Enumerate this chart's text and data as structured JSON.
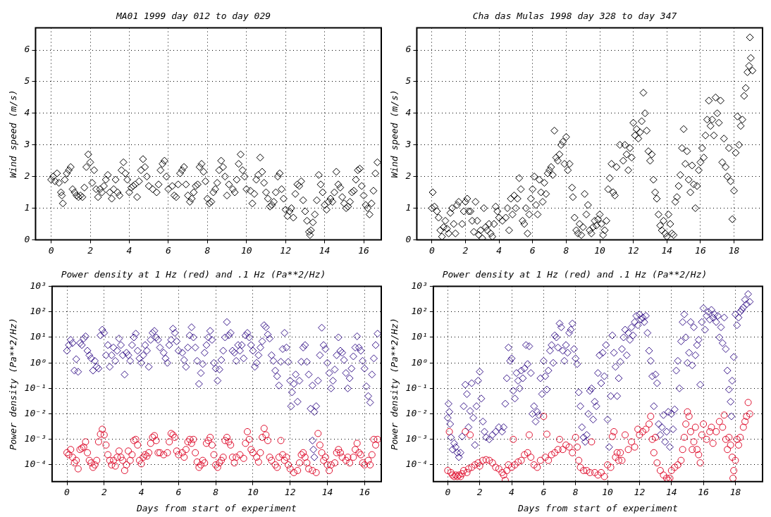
{
  "chart_data": [
    {
      "type": "scatter",
      "title": "MA01 1999 day 012 to day 029",
      "ylabel": "Wind speed (m/s)",
      "xlim": [
        -0.8,
        16.9
      ],
      "xticks": [
        0,
        2,
        4,
        6,
        8,
        10,
        12,
        14,
        16
      ],
      "ylim": [
        0,
        6.7
      ],
      "yticks": [
        0,
        1,
        2,
        3,
        4,
        5,
        6
      ],
      "grid": true,
      "marker": "diamond",
      "series": [
        {
          "color": "#000000",
          "x": [
            0,
            0.1,
            0.2,
            0.3,
            0.4,
            0.5,
            0.55,
            0.6,
            0.7,
            0.8,
            0.9,
            1.0,
            1.1,
            1.2,
            1.3,
            1.4,
            1.5,
            1.6,
            1.7,
            1.8,
            1.9,
            2.0,
            2.1,
            2.2,
            2.3,
            2.4,
            2.5,
            2.6,
            2.7,
            2.8,
            2.9,
            3.0,
            3.1,
            3.2,
            3.3,
            3.4,
            3.5,
            3.6,
            3.7,
            3.8,
            3.9,
            4.0,
            4.1,
            4.2,
            4.3,
            4.4,
            4.5,
            4.6,
            4.7,
            4.8,
            4.9,
            5.0,
            5.2,
            5.4,
            5.5,
            5.6,
            5.7,
            5.8,
            5.9,
            6.0,
            6.2,
            6.3,
            6.4,
            6.5,
            6.6,
            6.7,
            6.8,
            6.9,
            7.0,
            7.1,
            7.2,
            7.3,
            7.4,
            7.5,
            7.6,
            7.7,
            7.8,
            7.9,
            8.0,
            8.1,
            8.2,
            8.3,
            8.4,
            8.5,
            8.6,
            8.7,
            8.8,
            8.9,
            9.0,
            9.1,
            9.3,
            9.4,
            9.5,
            9.6,
            9.7,
            9.8,
            9.9,
            10.0,
            10.2,
            10.3,
            10.4,
            10.5,
            10.6,
            10.7,
            10.8,
            10.9,
            11.0,
            11.1,
            11.2,
            11.3,
            11.4,
            11.5,
            11.6,
            11.7,
            11.8,
            11.9,
            12.0,
            12.1,
            12.2,
            12.3,
            12.4,
            12.5,
            12.6,
            12.7,
            12.8,
            12.9,
            13.0,
            13.1,
            13.2,
            13.25,
            13.3,
            13.4,
            13.5,
            13.6,
            13.7,
            13.8,
            13.9,
            14.0,
            14.1,
            14.2,
            14.3,
            14.4,
            14.5,
            14.6,
            14.7,
            14.8,
            14.9,
            15.0,
            15.1,
            15.2,
            15.3,
            15.4,
            15.5,
            15.6,
            15.7,
            15.8,
            15.9,
            16.0,
            16.1,
            16.2,
            16.3,
            16.4,
            16.5,
            16.6,
            16.7
          ],
          "values": [
            1.9,
            2.0,
            1.85,
            2.1,
            1.8,
            1.5,
            1.4,
            1.15,
            1.9,
            2.1,
            2.2,
            2.3,
            1.6,
            1.5,
            1.4,
            1.35,
            1.4,
            1.35,
            1.65,
            2.3,
            2.7,
            2.45,
            1.8,
            2.2,
            1.6,
            1.35,
            1.6,
            1.5,
            1.7,
            1.9,
            2.05,
            1.5,
            1.3,
            1.6,
            1.9,
            1.5,
            1.4,
            2.2,
            2.45,
            2.1,
            1.9,
            1.5,
            1.65,
            1.7,
            1.75,
            1.35,
            1.85,
            2.2,
            2.55,
            2.3,
            2.0,
            1.7,
            1.6,
            1.5,
            1.75,
            2.2,
            2.4,
            2.5,
            2.0,
            1.6,
            1.7,
            1.4,
            1.35,
            1.75,
            2.1,
            2.2,
            2.3,
            1.75,
            1.4,
            1.2,
            1.3,
            1.5,
            1.7,
            1.75,
            2.3,
            2.4,
            2.15,
            1.85,
            1.3,
            1.15,
            1.2,
            1.5,
            1.6,
            1.8,
            2.2,
            2.5,
            2.3,
            2.0,
            1.4,
            1.75,
            1.6,
            1.5,
            1.9,
            2.4,
            2.7,
            2.2,
            2.0,
            1.6,
            1.55,
            1.15,
            1.45,
            1.9,
            2.05,
            2.6,
            2.15,
            1.8,
            1.5,
            1.3,
            1.05,
            1.1,
            1.2,
            1.5,
            2.0,
            2.1,
            1.6,
            1.3,
            0.95,
            0.75,
            0.9,
            1.0,
            0.7,
            1.45,
            1.75,
            1.7,
            1.85,
            1.25,
            0.9,
            0.6,
            0.25,
            0.15,
            0.3,
            0.55,
            0.8,
            1.25,
            2.05,
            1.75,
            1.5,
            1.1,
            0.95,
            1.2,
            1.3,
            1.2,
            1.5,
            2.15,
            1.75,
            1.65,
            1.35,
            1.15,
            1.0,
            1.05,
            1.2,
            1.5,
            1.55,
            1.9,
            2.2,
            2.25,
            1.7,
            1.4,
            1.1,
            1.0,
            0.8,
            1.15,
            1.55,
            2.1,
            2.45
          ]
        }
      ]
    },
    {
      "type": "scatter",
      "title": "Cha das Mulas 1998 day 328 to day 347",
      "ylabel": "Wind speed (m/s)",
      "xlim": [
        -0.9,
        19.7
      ],
      "xticks": [
        0,
        2,
        4,
        6,
        8,
        10,
        12,
        14,
        16,
        18
      ],
      "ylim": [
        0,
        6.7
      ],
      "yticks": [
        0,
        1,
        2,
        3,
        4,
        5,
        6
      ],
      "grid": true,
      "marker": "diamond",
      "series": [
        {
          "color": "#000000",
          "x": [
            0,
            0.05,
            0.15,
            0.3,
            0.4,
            0.5,
            0.6,
            0.7,
            0.8,
            0.9,
            1.0,
            1.1,
            1.2,
            1.3,
            1.4,
            1.5,
            1.6,
            1.8,
            1.9,
            2.0,
            2.1,
            2.2,
            2.3,
            2.4,
            2.5,
            2.6,
            2.7,
            2.8,
            2.9,
            3.0,
            3.1,
            3.2,
            3.3,
            3.4,
            3.5,
            3.6,
            3.7,
            3.8,
            3.9,
            4.0,
            4.2,
            4.4,
            4.5,
            4.6,
            4.7,
            4.8,
            4.9,
            5.0,
            5.1,
            5.2,
            5.3,
            5.4,
            5.5,
            5.6,
            5.7,
            5.8,
            5.9,
            6.0,
            6.1,
            6.2,
            6.3,
            6.4,
            6.5,
            6.6,
            6.7,
            6.8,
            6.9,
            7.0,
            7.1,
            7.2,
            7.3,
            7.4,
            7.5,
            7.6,
            7.7,
            7.8,
            7.9,
            8.0,
            8.1,
            8.2,
            8.35,
            8.4,
            8.5,
            8.6,
            8.7,
            8.8,
            8.9,
            9.0,
            9.1,
            9.2,
            9.3,
            9.4,
            9.5,
            9.6,
            9.7,
            9.8,
            9.9,
            10.0,
            10.1,
            10.2,
            10.3,
            10.4,
            10.5,
            10.6,
            10.7,
            10.8,
            10.9,
            11.0,
            11.2,
            11.4,
            11.5,
            11.6,
            11.7,
            11.8,
            11.9,
            12.0,
            12.1,
            12.2,
            12.3,
            12.4,
            12.5,
            12.6,
            12.7,
            12.8,
            12.9,
            13.0,
            13.1,
            13.2,
            13.3,
            13.4,
            13.5,
            13.6,
            13.7,
            13.8,
            13.9,
            14.0,
            14.1,
            14.2,
            14.3,
            14.4,
            14.5,
            14.6,
            14.7,
            14.8,
            14.9,
            15.0,
            15.1,
            15.2,
            15.3,
            15.4,
            15.5,
            15.6,
            15.7,
            15.8,
            15.9,
            16.0,
            16.1,
            16.2,
            16.3,
            16.4,
            16.5,
            16.6,
            16.7,
            16.8,
            16.9,
            17.0,
            17.1,
            17.2,
            17.3,
            17.4,
            17.5,
            17.6,
            17.7,
            17.8,
            17.9,
            18.0,
            18.1,
            18.2,
            18.3,
            18.4,
            18.5,
            18.6,
            18.7,
            18.8,
            18.9,
            18.95,
            19.0,
            19.1
          ],
          "values": [
            1.0,
            1.5,
            1.05,
            0.9,
            0.7,
            0.3,
            0.1,
            0.4,
            0.6,
            0.35,
            0.2,
            0.85,
            1.0,
            0.5,
            0.2,
            1.1,
            1.2,
            0.5,
            0.9,
            1.2,
            1.3,
            0.9,
            0.9,
            0.6,
            0.25,
            1.2,
            0.6,
            0.15,
            0.3,
            0.05,
            1.0,
            0.4,
            0.3,
            0.5,
            0.2,
            0.1,
            0.5,
            1.05,
            0.9,
            0.7,
            0.6,
            0.7,
            1.0,
            0.3,
            1.3,
            0.8,
            1.4,
            1.0,
            1.3,
            1.95,
            1.6,
            0.6,
            0.5,
            1.0,
            0.2,
            0.8,
            1.3,
            1.6,
            2.0,
            1.1,
            0.8,
            1.9,
            1.5,
            1.2,
            1.8,
            1.45,
            2.1,
            2.2,
            2.3,
            2.05,
            3.45,
            2.6,
            2.5,
            2.7,
            3.0,
            3.1,
            2.4,
            3.25,
            2.2,
            2.4,
            1.65,
            1.35,
            0.7,
            0.3,
            0.2,
            0.5,
            0.15,
            0.4,
            1.45,
            0.8,
            1.1,
            0.3,
            0.2,
            0.4,
            0.6,
            0.45,
            0.65,
            0.8,
            0.5,
            0.15,
            0.3,
            0.6,
            1.6,
            1.95,
            2.4,
            1.5,
            1.4,
            2.3,
            3.0,
            2.5,
            3.0,
            2.7,
            2.2,
            2.9,
            2.6,
            3.7,
            3.3,
            3.5,
            3.2,
            3.4,
            3.75,
            4.65,
            4.0,
            3.45,
            2.8,
            2.5,
            2.7,
            1.9,
            1.5,
            1.3,
            0.8,
            0.45,
            0.3,
            0.6,
            0.2,
            0.1,
            0.8,
            0.5,
            0.2,
            0.15,
            1.2,
            1.35,
            1.7,
            2.05,
            2.9,
            3.5,
            2.4,
            2.8,
            1.9,
            1.5,
            2.35,
            1.75,
            1.0,
            1.7,
            2.2,
            2.45,
            2.9,
            2.6,
            3.3,
            3.8,
            4.4,
            3.6,
            3.8,
            3.3,
            4.5,
            4.0,
            3.7,
            4.4,
            2.45,
            3.2,
            2.3,
            2.0,
            2.9,
            1.85,
            0.65,
            1.55,
            2.75,
            3.9,
            3.0,
            3.6,
            3.8,
            4.55,
            4.8,
            5.3,
            5.5,
            6.4,
            5.75,
            5.35
          ]
        }
      ]
    },
    {
      "type": "scatter",
      "title": "Power density at 1 Hz (red) and .1 Hz (Pa**2/Hz)",
      "xlabel": "Days from start of experiment",
      "ylabel": "Power density (Pa**2/Hz)",
      "log": "y",
      "xlim": [
        -0.8,
        16.9
      ],
      "xticks": [
        0,
        2,
        4,
        6,
        8,
        10,
        12,
        14,
        16
      ],
      "ylim": [
        2.2e-05,
        1000
      ],
      "yticks": [
        {
          "value": 1000,
          "label": "10³"
        },
        {
          "value": 100,
          "label": "10²"
        },
        {
          "value": 10,
          "label": "10¹"
        },
        {
          "value": 1,
          "label": "10⁰"
        },
        {
          "value": 0.1,
          "label": "10⁻¹"
        },
        {
          "value": 0.01,
          "label": "10⁻²"
        },
        {
          "value": 0.001,
          "label": "10⁻³"
        },
        {
          "value": 0.0001,
          "label": "10⁻⁴"
        }
      ],
      "grid": true,
      "marker": "diamond",
      "series": [
        {
          "color": "#3b1a8c",
          "x": [
            0,
            0.1,
            0.2,
            0.3,
            0.4,
            0.5,
            0.6,
            0.7,
            0.8,
            0.9,
            1.0,
            1.1,
            1.2,
            1.3,
            1.4,
            1.5,
            1.6,
            1.7,
            1.8,
            1.9,
            2.0,
            2.1,
            2.2,
            2.3,
            2.4,
            2.5,
            2.6,
            2.7,
            2.8,
            2.9,
            3.0,
            3.1,
            3.2,
            3.3,
            3.4,
            3.5,
            3.6,
            3.7,
            3.8,
            3.9,
            4.0,
            4.1,
            4.2,
            4.3,
            4.4,
            4.5,
            4.6,
            4.7,
            4.8,
            4.9,
            5.0,
            5.2,
            5.3,
            5.4,
            5.5,
            5.6,
            5.7,
            5.8,
            5.9,
            6.0,
            6.2,
            6.3,
            6.4,
            6.5,
            6.6,
            6.7,
            6.8,
            6.9,
            7.0,
            7.1,
            7.2,
            7.3,
            7.4,
            7.5,
            7.6,
            7.7,
            7.8,
            7.9,
            8.0,
            8.1,
            8.2,
            8.3,
            8.4,
            8.5,
            8.6,
            8.7,
            8.8,
            8.9,
            9.0,
            9.1,
            9.2,
            9.3,
            9.4,
            9.5,
            9.6,
            9.7,
            9.8,
            9.9,
            10.0,
            10.1,
            10.2,
            10.3,
            10.4,
            10.5,
            10.6,
            10.7,
            10.8,
            10.9,
            11.0,
            11.1,
            11.2,
            11.3,
            11.4,
            11.5,
            11.6,
            11.7,
            11.8,
            11.9,
            12.0,
            12.05,
            12.1,
            12.2,
            12.3,
            12.4,
            12.5,
            12.6,
            12.7,
            12.8,
            12.9,
            13.0,
            13.1,
            13.2,
            13.3,
            13.4,
            13.5,
            13.6,
            13.7,
            13.8,
            13.9,
            14.0,
            14.1,
            14.2,
            14.3,
            14.4,
            14.5,
            14.6,
            14.7,
            14.8,
            14.9,
            15.0,
            15.1,
            15.2,
            15.3,
            15.4,
            15.5,
            15.6,
            15.7,
            15.8,
            15.9,
            16.0,
            16.1,
            16.2,
            16.3,
            16.4,
            16.5,
            16.6,
            16.7,
            13.2,
            13.25,
            13.3
          ],
          "values": [
            3,
            5,
            8,
            6,
            0.5,
            1.4,
            0.45,
            6,
            5,
            9,
            11,
            3,
            2,
            1.5,
            0.5,
            1.2,
            0.7,
            0.6,
            12,
            20,
            15,
            2,
            5,
            0.7,
            2,
            4,
            1.2,
            3,
            9,
            5,
            2,
            0.35,
            2.5,
            2,
            1.2,
            5,
            10,
            14,
            3,
            1.5,
            1.0,
            2,
            5,
            3,
            0.7,
            8,
            15,
            18,
            10,
            8,
            4,
            2.5,
            1.5,
            1.0,
            5,
            8,
            22,
            15,
            7,
            3,
            2.5,
            1.3,
            0.7,
            4,
            12,
            25,
            10,
            4,
            1.2,
            0.15,
            0.4,
            0.9,
            2.5,
            5,
            10,
            18,
            8,
            1.0,
            0.6,
            0.2,
            0.55,
            1.3,
            3,
            10,
            40,
            12,
            15,
            3,
            2.5,
            1.2,
            5,
            3,
            5,
            1.5,
            12,
            15,
            10,
            5,
            3,
            0.7,
            1.0,
            2,
            4,
            7,
            30,
            25,
            13,
            9,
            2,
            1.2,
            0.5,
            0.3,
            0.13,
            1.1,
            3.5,
            15,
            4,
            1.1,
            0.2,
            0.02,
            0.07,
            0.15,
            0.35,
            0.03,
            0.2,
            1.1,
            4,
            5,
            1.1,
            0.35,
            0.016,
            0.13,
            0.012,
            0.02,
            0.2,
            2,
            24,
            5,
            3.5,
            1,
            0.4,
            0.1,
            0.2,
            0.55,
            2,
            10,
            3,
            2.5,
            1.3,
            0.4,
            0.1,
            0.25,
            0.6,
            1.8,
            4,
            11,
            4,
            3,
            1.2,
            0.6,
            0.12,
            0.05,
            0.028,
            0.35,
            1.5,
            5,
            14,
            0.0009,
            0.0004,
            0.0002
          ]
        },
        {
          "color": "#e0102f",
          "marker": "circle",
          "x": [
            0,
            0.1,
            0.2,
            0.3,
            0.4,
            0.5,
            0.6,
            0.7,
            0.8,
            0.9,
            1.0,
            1.1,
            1.2,
            1.3,
            1.4,
            1.5,
            1.6,
            1.7,
            1.8,
            1.9,
            2.0,
            2.1,
            2.2,
            2.3,
            2.4,
            2.5,
            2.6,
            2.7,
            2.8,
            2.9,
            3.0,
            3.1,
            3.2,
            3.3,
            3.4,
            3.5,
            3.6,
            3.7,
            3.8,
            3.9,
            4.0,
            4.1,
            4.2,
            4.3,
            4.4,
            4.5,
            4.6,
            4.7,
            4.8,
            4.9,
            5.0,
            5.2,
            5.4,
            5.5,
            5.6,
            5.7,
            5.8,
            5.9,
            6.0,
            6.2,
            6.3,
            6.4,
            6.5,
            6.6,
            6.7,
            6.8,
            6.9,
            7.0,
            7.1,
            7.2,
            7.3,
            7.4,
            7.5,
            7.6,
            7.7,
            7.8,
            7.9,
            8.0,
            8.1,
            8.2,
            8.3,
            8.4,
            8.5,
            8.6,
            8.7,
            8.8,
            8.9,
            9.0,
            9.1,
            9.3,
            9.5,
            9.6,
            9.7,
            9.8,
            9.9,
            10.0,
            10.2,
            10.3,
            10.4,
            10.5,
            10.6,
            10.7,
            10.8,
            10.9,
            11.0,
            11.2,
            11.3,
            11.4,
            11.5,
            11.6,
            11.7,
            11.8,
            11.9,
            12.0,
            12.2,
            12.4,
            12.5,
            12.6,
            12.7,
            12.8,
            12.9,
            13.0,
            13.2,
            13.4,
            13.5,
            13.6,
            13.7,
            13.8,
            13.9,
            14.0,
            14.1,
            14.2,
            14.4,
            14.5,
            14.6,
            14.7,
            14.8,
            15.0,
            15.1,
            15.2,
            15.4,
            15.5,
            15.6,
            15.7,
            15.8,
            15.9,
            16.0,
            16.2,
            16.3,
            16.4,
            16.5,
            16.6,
            16.7
          ],
          "values": [
            0.0003,
            0.00025,
            0.0004,
            0.0002,
            0.00012,
            0.00015,
            7e-05,
            0.0004,
            0.00045,
            0.0005,
            0.0008,
            0.0003,
            0.00015,
            0.00012,
            8e-05,
            0.0001,
            0.00015,
            0.0008,
            0.0016,
            0.0025,
            0.0015,
            0.0006,
            0.00025,
            0.00015,
            0.0001,
            0.00015,
            9e-05,
            0.0002,
            0.00035,
            0.0002,
            0.00015,
            6e-05,
            0.0001,
            0.00035,
            0.00015,
            0.00025,
            0.0009,
            0.001,
            0.0006,
            0.00015,
            0.00011,
            0.0002,
            0.00025,
            0.00022,
            0.0003,
            0.0007,
            0.0012,
            0.0014,
            0.0009,
            0.0003,
            0.0003,
            0.00025,
            0.0003,
            0.0008,
            0.0017,
            0.0015,
            0.0012,
            0.00035,
            0.00025,
            0.0003,
            0.0002,
            0.0004,
            0.0008,
            0.001,
            0.0007,
            0.001,
            0.0003,
            0.00013,
            8e-05,
            0.0001,
            0.00015,
            0.00012,
            0.0007,
            0.0009,
            0.0012,
            0.0006,
            0.00025,
            0.0001,
            8e-05,
            0.00012,
            0.00015,
            0.0002,
            0.0009,
            0.0012,
            0.0008,
            0.0006,
            0.0002,
            0.00012,
            0.0002,
            0.00025,
            0.00018,
            0.0007,
            0.002,
            0.001,
            0.0004,
            0.0003,
            0.0002,
            0.00013,
            0.0003,
            0.0012,
            0.0027,
            0.0015,
            0.0009,
            0.0002,
            0.00015,
            0.0001,
            8e-05,
            0.0002,
            0.0009,
            0.00025,
            0.00015,
            0.0002,
            0.0001,
            7e-05,
            5e-05,
            6e-05,
            0.00012,
            0.00025,
            0.0003,
            0.0002,
            0.00012,
            7e-05,
            6e-05,
            5e-05,
            0.0017,
            0.0006,
            0.0003,
            0.00015,
            0.0002,
            0.0001,
            6e-05,
            0.0001,
            0.00012,
            0.0003,
            0.0004,
            0.0003,
            0.0002,
            0.00015,
            0.0002,
            0.00012,
            0.0002,
            0.0004,
            0.0007,
            0.0003,
            0.00025,
            0.00012,
            0.0001,
            0.00015,
            0.0001,
            0.00025,
            0.001,
            0.0006,
            0.001
          ]
        }
      ]
    },
    {
      "type": "scatter",
      "title": "Power density at 1 Hz (red) and .1 Hz (Pa**2/Hz)",
      "xlabel": "Days from start of experiment",
      "ylabel": "Power density (Pa**2/Hz)",
      "log": "y",
      "xlim": [
        -0.9,
        19.7
      ],
      "xticks": [
        0,
        2,
        4,
        6,
        8,
        10,
        12,
        14,
        16,
        18
      ],
      "ylim": [
        2.2e-05,
        1000
      ],
      "yticks": [
        {
          "value": 1000,
          "label": "10³"
        },
        {
          "value": 100,
          "label": "10²"
        },
        {
          "value": 10,
          "label": "10¹"
        },
        {
          "value": 1,
          "label": "10⁰"
        },
        {
          "value": 0.1,
          "label": "10⁻¹"
        },
        {
          "value": 0.01,
          "label": "10⁻²"
        },
        {
          "value": 0.001,
          "label": "10⁻³"
        },
        {
          "value": 0.0001,
          "label": "10⁻⁴"
        }
      ],
      "grid": true,
      "marker": "diamond",
      "series": [
        {
          "color": "#3b1a8c",
          "x": [
            0,
            0.05,
            0.1,
            0.15,
            0.2,
            0.3,
            0.4,
            0.5,
            0.6,
            0.7,
            0.8,
            0.9,
            1.0,
            1.1,
            1.2,
            1.3,
            1.4,
            1.5,
            1.6,
            1.7,
            1.8,
            1.9,
            2.0,
            2.1,
            2.2,
            2.3,
            2.4,
            2.6,
            2.8,
            3.0,
            3.2,
            3.4,
            3.5,
            3.6,
            3.7,
            3.8,
            3.9,
            4.0,
            4.1,
            4.2,
            4.3,
            4.4,
            4.5,
            4.6,
            4.7,
            4.8,
            4.9,
            5.0,
            5.1,
            5.2,
            5.3,
            5.4,
            5.5,
            5.6,
            5.7,
            5.8,
            5.9,
            6.0,
            6.1,
            6.2,
            6.3,
            6.4,
            6.5,
            6.6,
            6.7,
            6.8,
            6.9,
            7.0,
            7.1,
            7.2,
            7.3,
            7.4,
            7.5,
            7.6,
            7.7,
            7.8,
            7.9,
            8.0,
            8.1,
            8.2,
            8.3,
            8.4,
            8.5,
            8.6,
            8.7,
            8.8,
            8.9,
            9.0,
            9.1,
            9.2,
            9.3,
            9.4,
            9.5,
            9.6,
            9.7,
            9.8,
            9.9,
            10.0,
            10.1,
            10.2,
            10.3,
            10.4,
            10.5,
            10.6,
            10.7,
            10.8,
            10.9,
            11.0,
            11.1,
            11.2,
            11.3,
            11.4,
            11.5,
            11.6,
            11.7,
            11.8,
            11.9,
            12.0,
            12.1,
            12.2,
            12.3,
            12.4,
            12.5,
            12.6,
            12.7,
            12.8,
            12.9,
            13.0,
            13.1,
            13.2,
            13.3,
            13.4,
            13.5,
            13.6,
            13.7,
            13.8,
            13.9,
            14.0,
            14.1,
            14.2,
            14.3,
            14.4,
            14.5,
            14.6,
            14.7,
            14.8,
            14.9,
            15.0,
            15.1,
            15.2,
            15.3,
            15.4,
            15.5,
            15.6,
            15.7,
            15.8,
            15.9,
            16.0,
            16.1,
            16.2,
            16.3,
            16.4,
            16.5,
            16.6,
            16.7,
            16.8,
            16.9,
            17.0,
            17.1,
            17.2,
            17.3,
            17.4,
            17.5,
            17.6,
            17.7,
            17.75,
            17.8,
            17.9,
            18.0,
            18.1,
            18.2,
            18.3,
            18.4,
            18.5,
            18.6,
            18.7,
            18.8,
            18.9
          ],
          "values": [
            0.007,
            0.025,
            0.012,
            0.004,
            0.0012,
            0.0004,
            0.0007,
            0.0005,
            0.0003,
            0.0002,
            0.0003,
            0.0013,
            0.02,
            0.14,
            0.06,
            0.003,
            0.013,
            0.16,
            0.007,
            0.0006,
            0.02,
            0.2,
            0.45,
            0.04,
            0.005,
            0.002,
            0.0012,
            0.001,
            0.0015,
            0.002,
            0.003,
            0.002,
            0.003,
            0.025,
            0.25,
            4,
            1.2,
            1.5,
            0.08,
            0.04,
            0.4,
            0.2,
            0.1,
            0.5,
            0.25,
            0.6,
            5,
            0.9,
            4.5,
            0.4,
            0.01,
            0.02,
            0.005,
            0.012,
            0.009,
            0.25,
            0.06,
            1.2,
            0.3,
            0.09,
            0.5,
            3,
            5,
            1.0,
            12,
            10,
            4,
            35,
            25,
            3,
            1.2,
            5,
            2.5,
            15,
            20,
            35,
            3.5,
            1.5,
            0.9,
            0.07,
            0.02,
            0.003,
            0.0012,
            0.0008,
            0.0015,
            0.01,
            0.08,
            0.1,
            0.006,
            0.03,
            0.02,
            0.4,
            2,
            0.16,
            2.5,
            0.3,
            5,
            0.006,
            0.0005,
            0.05,
            12,
            2.5,
            0.7,
            0.05,
            0.25,
            1.1,
            3.5,
            10,
            20,
            2,
            15,
            8,
            25,
            12,
            40,
            70,
            30,
            80,
            50,
            60,
            40,
            70,
            15,
            3,
            1.2,
            0.3,
            0.02,
            0.35,
            0.16,
            0.004,
            0.0015,
            0.003,
            0.009,
            0.0008,
            0.002,
            0.012,
            0.0005,
            0.01,
            0.0025,
            0.015,
            0.5,
            1.2,
            0.1,
            7,
            40,
            80,
            10,
            1,
            2.5,
            40,
            0.8,
            25,
            2,
            5,
            8,
            0.14,
            40,
            140,
            20,
            70,
            100,
            50,
            120,
            60,
            80,
            40,
            70,
            10,
            25,
            6,
            60,
            3.5,
            0.5,
            0.09,
            0.03,
            0.008,
            0.2,
            1.7,
            80,
            30,
            60,
            100,
            120,
            150,
            300,
            200,
            500,
            250
          ]
        },
        {
          "color": "#e0102f",
          "marker": "circle",
          "x": [
            0,
            0.1,
            0.2,
            0.3,
            0.4,
            0.5,
            0.6,
            0.7,
            0.8,
            0.9,
            1.0,
            1.1,
            1.2,
            1.3,
            1.4,
            1.5,
            1.7,
            1.9,
            2.0,
            2.2,
            2.4,
            2.6,
            2.8,
            3.0,
            3.2,
            3.4,
            3.5,
            3.6,
            3.7,
            3.8,
            4.0,
            4.1,
            4.2,
            4.4,
            4.6,
            4.8,
            5.0,
            5.1,
            5.2,
            5.4,
            5.6,
            5.8,
            6.0,
            6.1,
            6.2,
            6.3,
            6.5,
            6.7,
            6.9,
            7.0,
            7.2,
            7.4,
            7.6,
            7.8,
            8.0,
            8.1,
            8.2,
            8.3,
            8.5,
            8.7,
            8.9,
            9.0,
            9.2,
            9.4,
            9.6,
            9.8,
            10.0,
            10.2,
            10.3,
            10.4,
            10.5,
            10.6,
            10.7,
            10.8,
            10.9,
            11.1,
            11.3,
            11.5,
            11.7,
            11.9,
            12.0,
            12.2,
            12.4,
            12.6,
            12.7,
            12.8,
            12.9,
            13.0,
            13.1,
            13.3,
            13.5,
            13.7,
            13.8,
            13.9,
            14.0,
            14.2,
            14.4,
            14.6,
            14.7,
            14.8,
            14.9,
            15.0,
            15.1,
            15.2,
            15.3,
            15.4,
            15.5,
            15.6,
            15.7,
            15.8,
            15.9,
            16.0,
            16.2,
            16.4,
            16.5,
            16.6,
            16.8,
            17.0,
            17.2,
            17.3,
            17.4,
            17.5,
            17.6,
            17.7,
            17.8,
            17.85,
            17.9,
            18.0,
            18.1,
            18.2,
            18.3,
            18.5,
            18.6,
            18.7,
            18.8,
            18.9
          ],
          "values": [
            6e-05,
            0.002,
            5e-05,
            4e-05,
            3.5e-05,
            4e-05,
            3.5e-05,
            4e-05,
            3.5e-05,
            4.5e-05,
            6e-05,
            0.002,
            5e-05,
            7e-05,
            0.0015,
            8e-05,
            0.0001,
            0.00012,
            9e-05,
            0.00015,
            0.00016,
            0.00015,
            0.00012,
            8e-05,
            7e-05,
            5e-05,
            4e-05,
            2.5e-05,
            6e-05,
            0.0001,
            8e-05,
            0.001,
            0.0001,
            0.00013,
            0.00015,
            0.00025,
            0.0003,
            0.0015,
            0.0002,
            0.0001,
            8e-05,
            0.00015,
            0.008,
            0.0002,
            0.0016,
            0.00015,
            0.00025,
            0.0003,
            0.0004,
            0.001,
            0.0004,
            0.0006,
            0.0005,
            0.0003,
            0.0012,
            0.0005,
            0.00015,
            8e-05,
            6e-05,
            6e-05,
            5e-05,
            0.0008,
            5e-05,
            4e-05,
            5e-05,
            3.5e-05,
            0.0001,
            8e-05,
            0.0013,
            0.002,
            0.0002,
            0.0003,
            0.00015,
            0.0003,
            0.00015,
            0.0015,
            0.0004,
            0.0008,
            0.0005,
            0.0025,
            0.0015,
            0.002,
            0.0025,
            0.004,
            0.008,
            0.001,
            0.0003,
            0.0012,
            0.00012,
            6e-05,
            4e-05,
            3e-05,
            2.5e-05,
            3e-05,
            6e-05,
            8e-05,
            0.0001,
            0.00015,
            0.0004,
            0.0012,
            0.004,
            0.012,
            0.008,
            0.002,
            0.0004,
            0.0008,
            0.003,
            0.0004,
            0.00025,
            0.00012,
            0.0015,
            0.004,
            0.001,
            0.002,
            0.003,
            0.0007,
            0.002,
            0.005,
            0.003,
            0.009,
            0.001,
            0.0004,
            0.0012,
            0.0006,
            0.0002,
            3e-05,
            6e-05,
            0.00015,
            0.001,
            0.0006,
            0.0012,
            0.003,
            0.005,
            0.008,
            0.028,
            0.01
          ]
        }
      ]
    }
  ]
}
